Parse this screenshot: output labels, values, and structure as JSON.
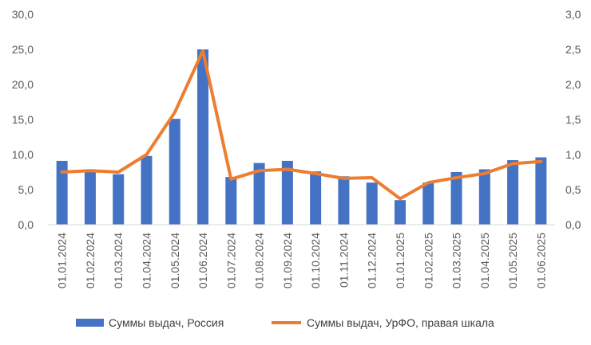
{
  "chart_data": {
    "type": "bar",
    "categories": [
      "01.01.2024",
      "01.02.2024",
      "01.03.2024",
      "01.04.2024",
      "01.05.2024",
      "01.06.2024",
      "01.07.2024",
      "01.08.2024",
      "01.09.2024",
      "01.10.2024",
      "01.11.2024",
      "01.12.2024",
      "01.01.2025",
      "01.02.2025",
      "01.03.2025",
      "01.04.2025",
      "01.05.2025",
      "01.06.2025"
    ],
    "series": [
      {
        "name": "Суммы выдач, Россия",
        "type": "bar",
        "axis": "left",
        "color": "#4472C4",
        "values": [
          9.1,
          7.9,
          7.2,
          9.8,
          15.1,
          25.0,
          6.8,
          8.8,
          9.1,
          7.6,
          6.9,
          6.0,
          3.5,
          6.0,
          7.5,
          7.9,
          9.2,
          9.6
        ]
      },
      {
        "name": "Суммы выдач, УрФО, правая шкала",
        "type": "line",
        "axis": "right",
        "color": "#ED7D31",
        "values": [
          0.75,
          0.77,
          0.75,
          1.0,
          1.6,
          2.48,
          0.65,
          0.77,
          0.79,
          0.73,
          0.66,
          0.67,
          0.37,
          0.6,
          0.67,
          0.73,
          0.87,
          0.9
        ]
      }
    ],
    "y_left": {
      "range": [
        0,
        30
      ],
      "ticks": [
        "0,0",
        "5,0",
        "10,0",
        "15,0",
        "20,0",
        "25,0",
        "30,0"
      ]
    },
    "y_right": {
      "range": [
        0,
        3
      ],
      "ticks": [
        "0,0",
        "0,5",
        "1,0",
        "1,5",
        "2,0",
        "2,5",
        "3,0"
      ]
    },
    "grid": false,
    "legend_position": "bottom"
  }
}
